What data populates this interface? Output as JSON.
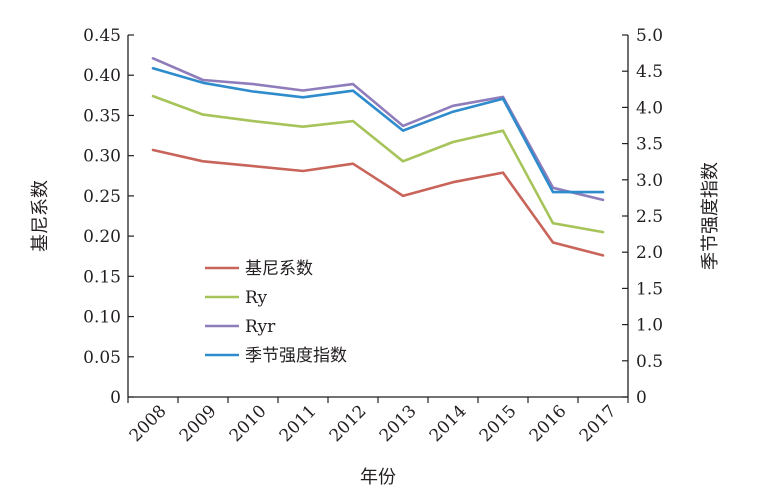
{
  "chart_data": {
    "type": "line",
    "categories": [
      "2008",
      "2009",
      "2010",
      "2011",
      "2012",
      "2013",
      "2014",
      "2015",
      "2016",
      "2017"
    ],
    "xlabel": "年份",
    "ylabel_left": "基尼系数",
    "ylabel_right": "季节强度指数",
    "ylim_left": [
      0,
      0.45
    ],
    "ylim_right": [
      0,
      5.0
    ],
    "yticks_left": [
      "0",
      "0.05",
      "0.10",
      "0.15",
      "0.20",
      "0.25",
      "0.30",
      "0.35",
      "0.40",
      "0.45"
    ],
    "yticks_right": [
      "0",
      "0.5",
      "1.0",
      "1.5",
      "2.0",
      "2.5",
      "3.0",
      "3.5",
      "4.0",
      "4.5",
      "5.0"
    ],
    "grid": false,
    "legend_position": "left-center",
    "series": [
      {
        "name": "基尼系数",
        "axis": "left",
        "color": "#c8645a",
        "values": [
          0.307,
          0.293,
          0.287,
          0.281,
          0.29,
          0.25,
          0.267,
          0.279,
          0.192,
          0.176
        ]
      },
      {
        "name": "Ry",
        "axis": "left",
        "color": "#a6c45a",
        "values": [
          0.374,
          0.351,
          0.343,
          0.336,
          0.343,
          0.293,
          0.317,
          0.331,
          0.216,
          0.205
        ]
      },
      {
        "name": "Ryr",
        "axis": "left",
        "color": "#8f7dbb",
        "values": [
          0.421,
          0.394,
          0.389,
          0.381,
          0.389,
          0.337,
          0.362,
          0.373,
          0.26,
          0.245
        ]
      },
      {
        "name": "季节强度指数",
        "axis": "right",
        "color": "#2e8bcc",
        "values": [
          4.54,
          4.34,
          4.22,
          4.14,
          4.23,
          3.68,
          3.94,
          4.12,
          2.83,
          2.83
        ]
      }
    ]
  }
}
